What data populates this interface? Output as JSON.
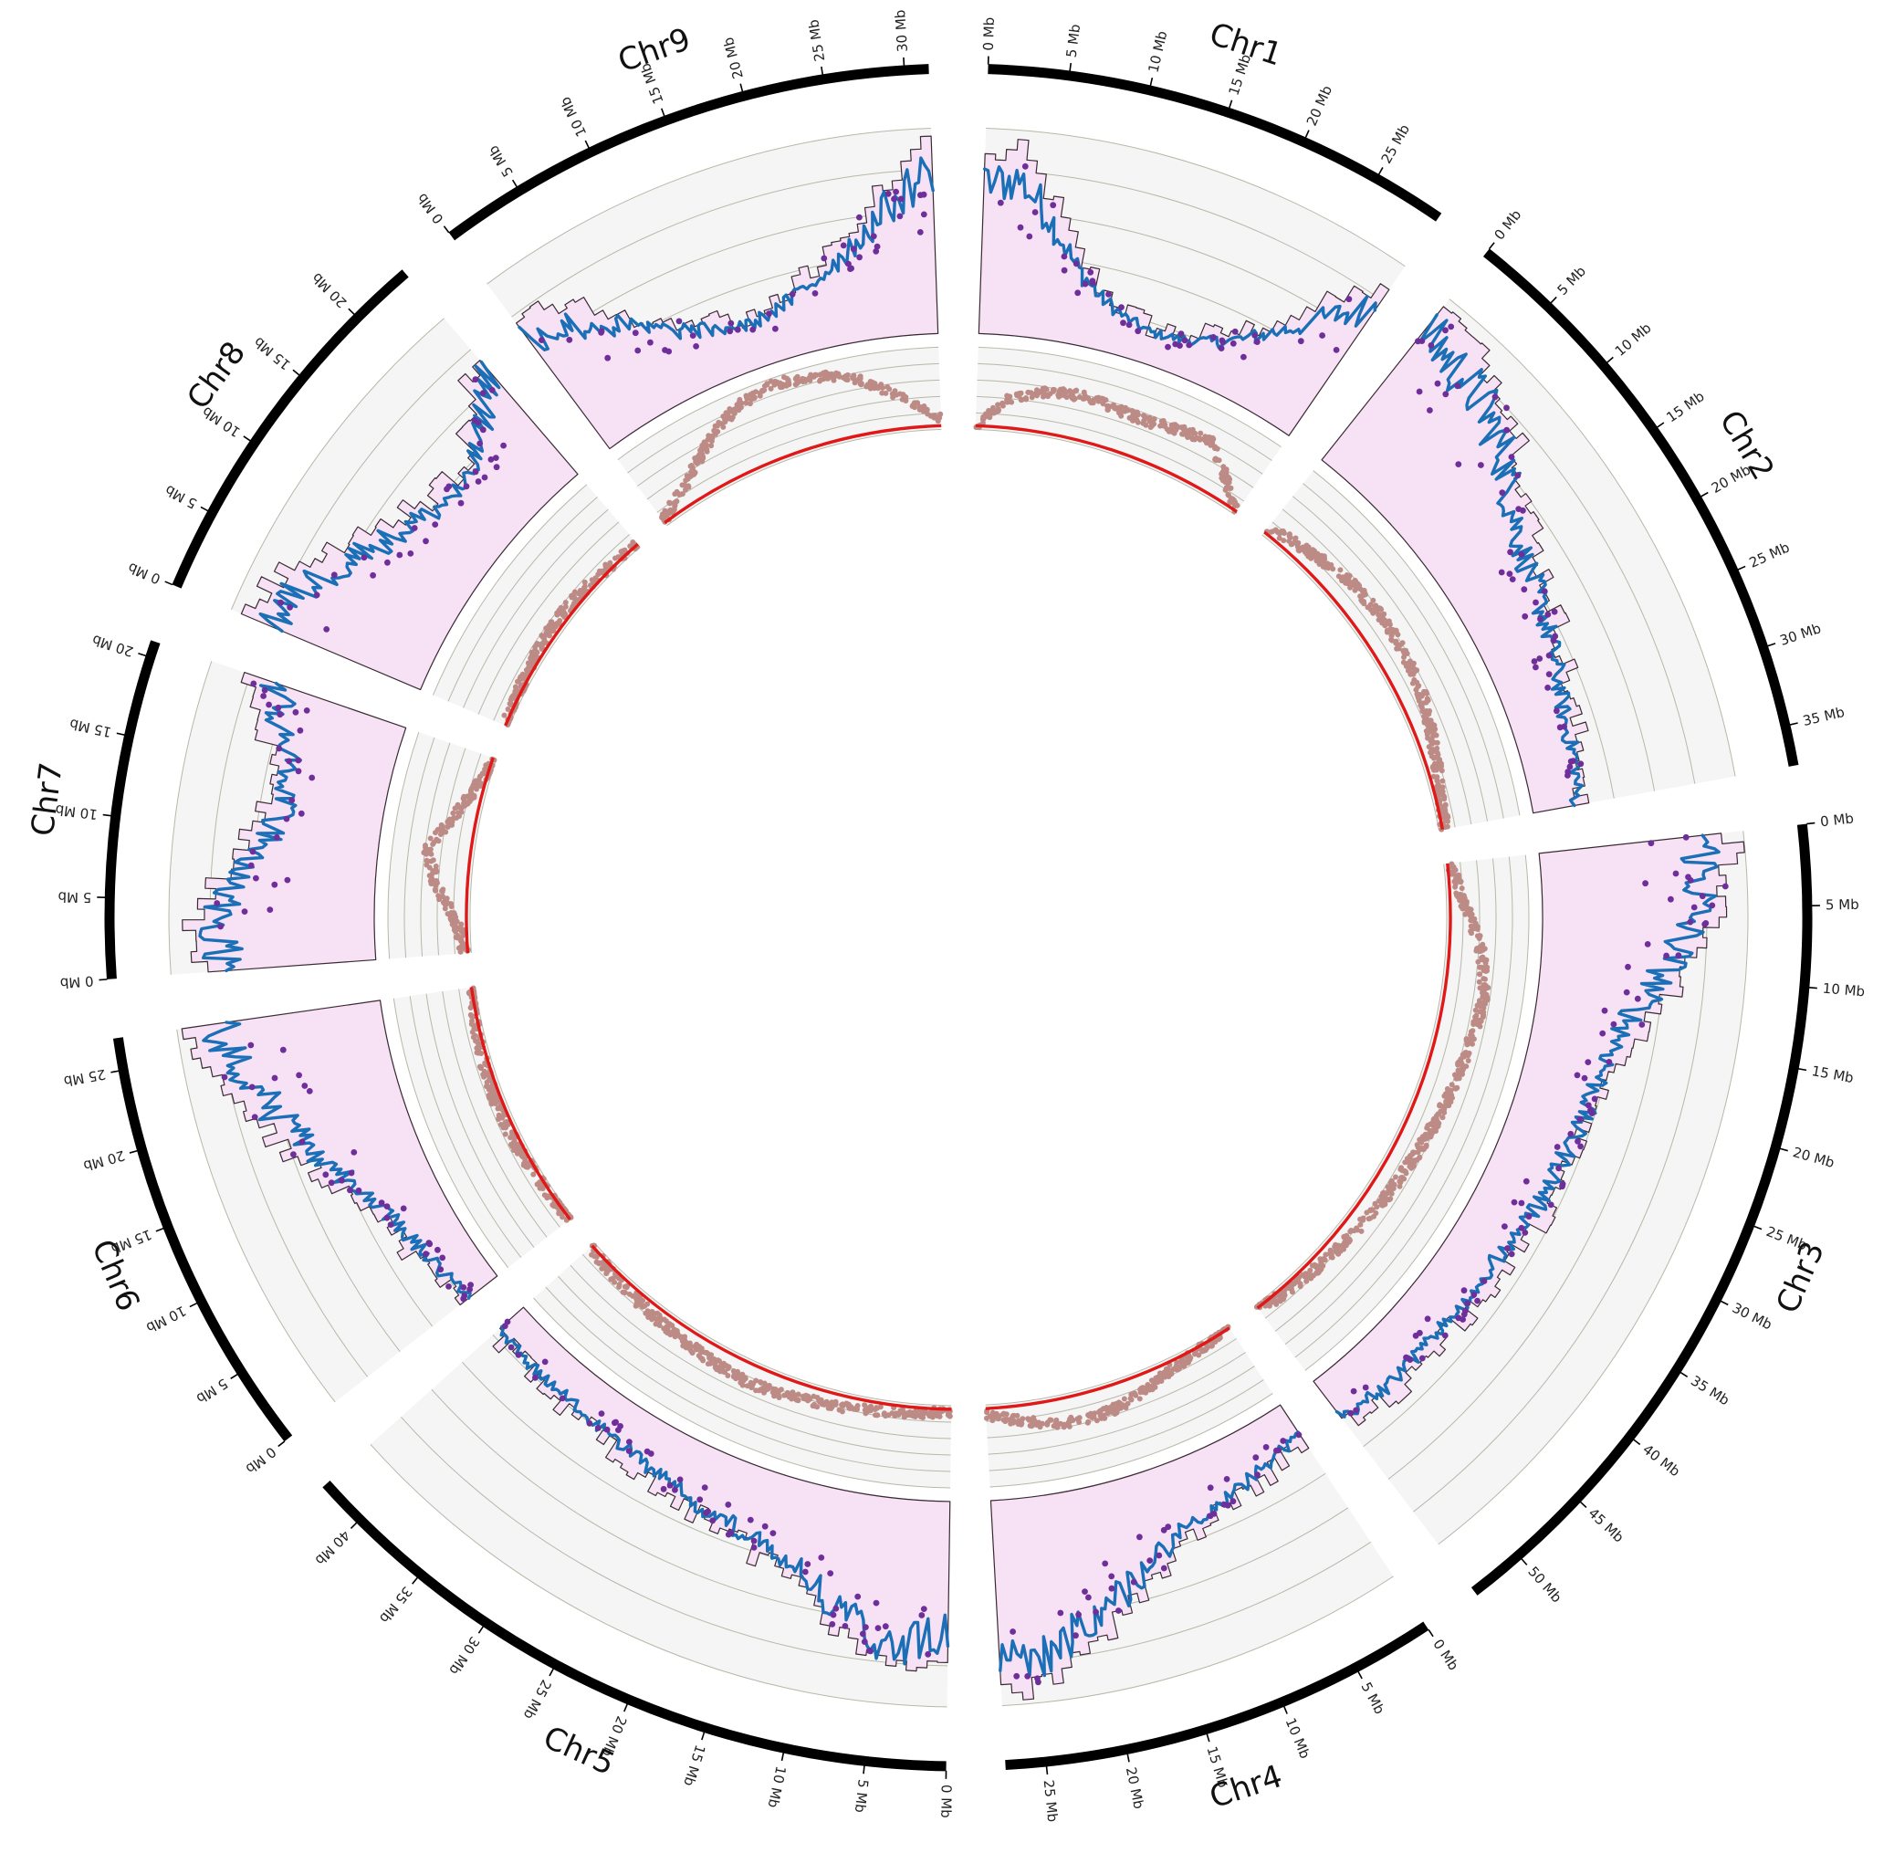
{
  "chart_data": {
    "type": "circos",
    "tick_unit": "Mb",
    "chromosomes": [
      {
        "name": "Chr1",
        "length_mb": 29.5,
        "ticks_mb": [
          0,
          5,
          10,
          15,
          20,
          25
        ]
      },
      {
        "name": "Chr2",
        "length_mb": 37.5,
        "ticks_mb": [
          0,
          5,
          10,
          15,
          20,
          25,
          30,
          35
        ]
      },
      {
        "name": "Chr3",
        "length_mb": 53.5,
        "ticks_mb": [
          0,
          5,
          10,
          15,
          20,
          25,
          30,
          35,
          40,
          45,
          50
        ]
      },
      {
        "name": "Chr4",
        "length_mb": 27.5,
        "ticks_mb": [
          0,
          5,
          10,
          15,
          20,
          25
        ]
      },
      {
        "name": "Chr5",
        "length_mb": 43.0,
        "ticks_mb": [
          0,
          5,
          10,
          15,
          20,
          25,
          30,
          35,
          40
        ]
      },
      {
        "name": "Chr6",
        "length_mb": 27.0,
        "ticks_mb": [
          0,
          5,
          10,
          15,
          20,
          25
        ]
      },
      {
        "name": "Chr7",
        "length_mb": 21.0,
        "ticks_mb": [
          0,
          5,
          10,
          15,
          20
        ]
      },
      {
        "name": "Chr8",
        "length_mb": 24.0,
        "ticks_mb": [
          0,
          5,
          10,
          15,
          20
        ]
      },
      {
        "name": "Chr9",
        "length_mb": 31.5,
        "ticks_mb": [
          0,
          5,
          10,
          15,
          20,
          25,
          30
        ]
      }
    ],
    "outer_track": {
      "histogram_fill": "#f7e1f5",
      "line_color": "#1a6fb6",
      "point_color": "#6e2f9a",
      "background": "#f5f5f5",
      "per_chromosome_profile": {
        "Chr1": [
          0.85,
          0.9,
          0.7,
          0.45,
          0.3,
          0.22,
          0.18,
          0.2,
          0.25,
          0.35,
          0.5,
          0.7,
          0.9
        ],
        "Chr2": [
          0.95,
          0.9,
          0.85,
          0.75,
          0.6,
          0.5,
          0.45,
          0.4,
          0.35,
          0.3,
          0.3,
          0.25
        ],
        "Chr3": [
          0.95,
          0.9,
          0.75,
          0.55,
          0.45,
          0.4,
          0.38,
          0.35,
          0.3,
          0.3,
          0.28,
          0.3,
          0.25
        ],
        "Chr4": [
          0.2,
          0.25,
          0.3,
          0.35,
          0.45,
          0.6,
          0.75,
          0.9,
          0.95
        ],
        "Chr5": [
          0.75,
          0.85,
          0.7,
          0.5,
          0.4,
          0.35,
          0.3,
          0.25,
          0.22,
          0.2,
          0.2,
          0.18
        ],
        "Chr6": [
          0.2,
          0.25,
          0.3,
          0.4,
          0.55,
          0.7,
          0.85,
          0.95
        ],
        "Chr7": [
          0.85,
          0.9,
          0.75,
          0.6,
          0.55,
          0.65,
          0.8
        ],
        "Chr8": [
          0.95,
          0.85,
          0.7,
          0.55,
          0.45,
          0.4,
          0.55,
          0.8
        ],
        "Chr9": [
          0.8,
          0.7,
          0.55,
          0.4,
          0.3,
          0.25,
          0.3,
          0.4,
          0.55,
          0.75,
          0.95
        ]
      }
    },
    "inner_track": {
      "point_color": "#bd8b86",
      "line_color": "#e01818",
      "background": "#f5f5f5",
      "per_chromosome_profile": {
        "Chr1": [
          0.0,
          0.35,
          0.5,
          0.55,
          0.55,
          0.5,
          0.5,
          0.55,
          0.6,
          0.3,
          0.0
        ],
        "Chr2": [
          0.1,
          0.2,
          0.3,
          0.35,
          0.35,
          0.3,
          0.2,
          0.1,
          0.05
        ],
        "Chr3": [
          0.05,
          0.2,
          0.4,
          0.5,
          0.45,
          0.4,
          0.35,
          0.3,
          0.25,
          0.2,
          0.15,
          0.1,
          0.05
        ],
        "Chr4": [
          0.0,
          0.05,
          0.1,
          0.2,
          0.3,
          0.35,
          0.3,
          0.2,
          0.1
        ],
        "Chr5": [
          0.05,
          0.1,
          0.15,
          0.2,
          0.25,
          0.2,
          0.15,
          0.1,
          0.05
        ],
        "Chr6": [
          0.02,
          0.05,
          0.08,
          0.1,
          0.08,
          0.05,
          0.02
        ],
        "Chr7": [
          0.05,
          0.15,
          0.4,
          0.55,
          0.3,
          0.1,
          0.02
        ],
        "Chr8": [
          0.02,
          0.05,
          0.1,
          0.12,
          0.1,
          0.05,
          0.02
        ],
        "Chr9": [
          0.05,
          0.25,
          0.55,
          0.8,
          0.9,
          0.85,
          0.7,
          0.4,
          0.1
        ]
      }
    }
  }
}
